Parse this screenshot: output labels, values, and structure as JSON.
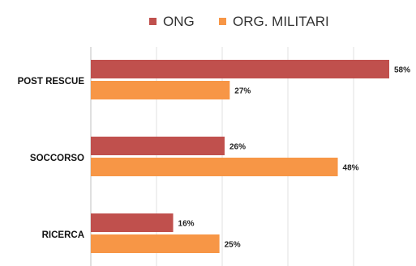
{
  "chart_data": {
    "type": "bar",
    "orientation": "horizontal",
    "categories": [
      "POST RESCUE",
      "SOCCORSO",
      "RICERCA"
    ],
    "series": [
      {
        "name": "ONG",
        "values": [
          58,
          26,
          16
        ],
        "labels": [
          "58%",
          "26%",
          "16%"
        ],
        "color": "#c0504d"
      },
      {
        "name": "ORG. MILITARI",
        "values": [
          27,
          48,
          25
        ],
        "labels": [
          "27%",
          "48%",
          "25%"
        ],
        "color": "#f79646"
      }
    ],
    "xlim": [
      0,
      58
    ],
    "grid": true,
    "legend": "top"
  }
}
